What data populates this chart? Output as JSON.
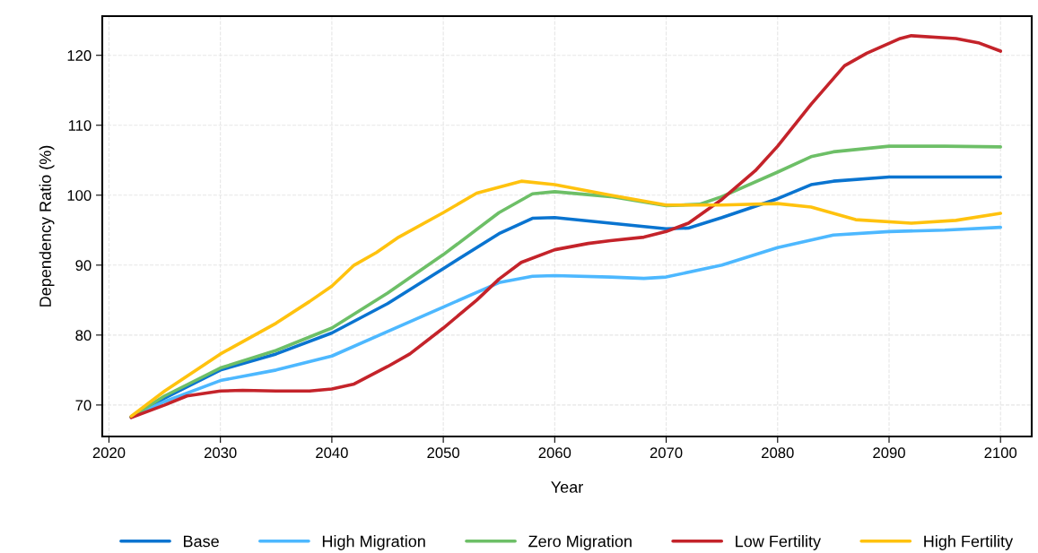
{
  "chart_data": {
    "type": "line",
    "xlabel": "Year",
    "ylabel": "Dependency Ratio (%)",
    "xlim": [
      2019.4,
      2102.8
    ],
    "ylim": [
      65.5,
      125.6
    ],
    "xticks": [
      2020,
      2030,
      2040,
      2050,
      2060,
      2070,
      2080,
      2090,
      2100
    ],
    "yticks": [
      70,
      80,
      90,
      100,
      110,
      120
    ],
    "grid": true,
    "legend": "bottom",
    "marker": "none",
    "line_style": "solid",
    "series": [
      {
        "name": "Base",
        "color": "#0a74d0",
        "x": [
          2022,
          2025,
          2030,
          2035,
          2040,
          2045,
          2050,
          2055,
          2058,
          2060,
          2065,
          2070,
          2072,
          2075,
          2080,
          2083,
          2085,
          2090,
          2095,
          2100
        ],
        "values": [
          68.3,
          71,
          75,
          77.3,
          80.3,
          84.5,
          89.5,
          94.5,
          96.7,
          96.8,
          96,
          95.2,
          95.3,
          96.8,
          99.5,
          101.5,
          102,
          102.6,
          102.6,
          102.6
        ]
      },
      {
        "name": "High Migration",
        "color": "#4db8ff",
        "x": [
          2022,
          2025,
          2030,
          2035,
          2040,
          2045,
          2050,
          2055,
          2058,
          2060,
          2065,
          2068,
          2070,
          2075,
          2080,
          2085,
          2090,
          2095,
          2100
        ],
        "values": [
          68.3,
          70.5,
          73.5,
          75,
          77,
          80.5,
          84,
          87.5,
          88.4,
          88.5,
          88.3,
          88.1,
          88.3,
          90,
          92.5,
          94.3,
          94.8,
          95,
          95.4
        ]
      },
      {
        "name": "Zero Migration",
        "color": "#6dbf67",
        "x": [
          2022,
          2025,
          2030,
          2035,
          2040,
          2045,
          2050,
          2055,
          2058,
          2060,
          2065,
          2070,
          2073,
          2075,
          2080,
          2083,
          2085,
          2090,
          2095,
          2100
        ],
        "values": [
          68.3,
          71.3,
          75.3,
          77.8,
          81,
          86,
          91.5,
          97.5,
          100.2,
          100.5,
          99.8,
          98.5,
          98.7,
          99.8,
          103.3,
          105.5,
          106.2,
          107,
          107,
          106.9
        ]
      },
      {
        "name": "Low Fertility",
        "color": "#c4232a",
        "x": [
          2022,
          2025,
          2027,
          2030,
          2032,
          2035,
          2038,
          2040,
          2042,
          2045,
          2047,
          2050,
          2053,
          2055,
          2057,
          2060,
          2063,
          2065,
          2068,
          2070,
          2072,
          2075,
          2078,
          2080,
          2083,
          2086,
          2088,
          2091,
          2092,
          2096,
          2098,
          2100
        ],
        "values": [
          68.2,
          70,
          71.3,
          72,
          72.1,
          72,
          72,
          72.3,
          73,
          75.5,
          77.3,
          81,
          85,
          88,
          90.4,
          92.2,
          93.1,
          93.5,
          94,
          94.8,
          96,
          99.4,
          103.5,
          107,
          113,
          118.5,
          120.3,
          122.4,
          122.8,
          122.4,
          121.8,
          120.6
        ]
      },
      {
        "name": "High Fertility",
        "color": "#ffc20e",
        "x": [
          2022,
          2025,
          2030,
          2035,
          2038,
          2040,
          2042,
          2044,
          2046,
          2050,
          2053,
          2057,
          2060,
          2065,
          2070,
          2075,
          2080,
          2083,
          2087,
          2092,
          2096,
          2100
        ],
        "values": [
          68.4,
          72,
          77.3,
          81.7,
          84.8,
          87,
          90,
          91.8,
          94,
          97.5,
          100.3,
          102,
          101.5,
          100,
          98.6,
          98.6,
          98.8,
          98.3,
          96.5,
          96,
          96.4,
          97.4
        ]
      }
    ]
  }
}
